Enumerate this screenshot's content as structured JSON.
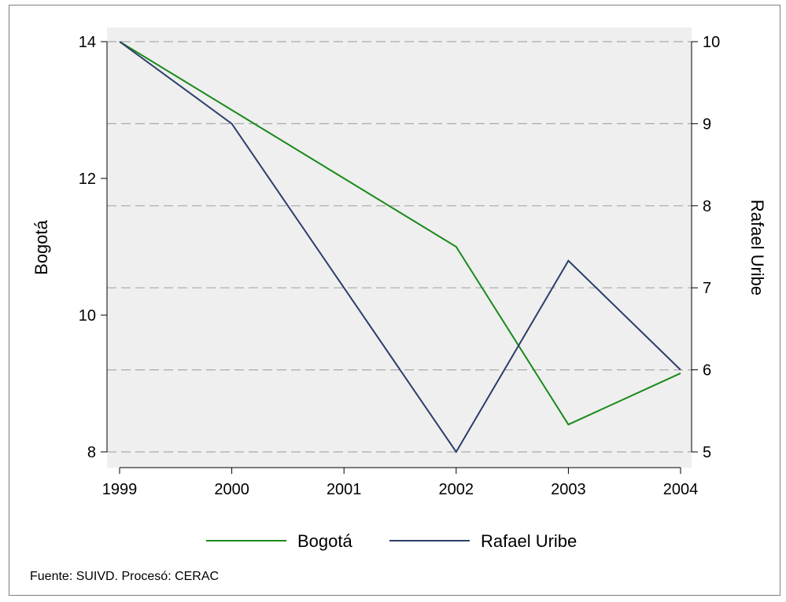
{
  "chart_data": {
    "type": "line",
    "x": [
      "1999",
      "2000",
      "2001",
      "2002",
      "2003",
      "2004"
    ],
    "series": [
      {
        "name": "Bogotá",
        "axis": "left",
        "color": "#1a8a1a",
        "values": [
          14,
          13,
          12,
          11,
          8.4,
          9.15
        ]
      },
      {
        "name": "Rafael Uribe",
        "axis": "right",
        "color": "#2c3e6b",
        "values": [
          10,
          9,
          7,
          5,
          7.33,
          6
        ]
      }
    ],
    "ylabel_left": "Bogotá",
    "ylabel_right": "Rafael Uribe",
    "ylim_left": [
      8,
      14
    ],
    "yticks_left": [
      "8",
      "10",
      "12",
      "14"
    ],
    "ylim_right": [
      5,
      10
    ],
    "yticks_right": [
      "5",
      "6",
      "7",
      "8",
      "9",
      "10"
    ],
    "grid": "dashed horizontal at right-axis ticks",
    "plot_background": "#efefef",
    "legend_position": "bottom",
    "legend": [
      "Bogotá",
      "Rafael Uribe"
    ],
    "note": "Fuente: SUIVD. Procesó: CERAC"
  }
}
